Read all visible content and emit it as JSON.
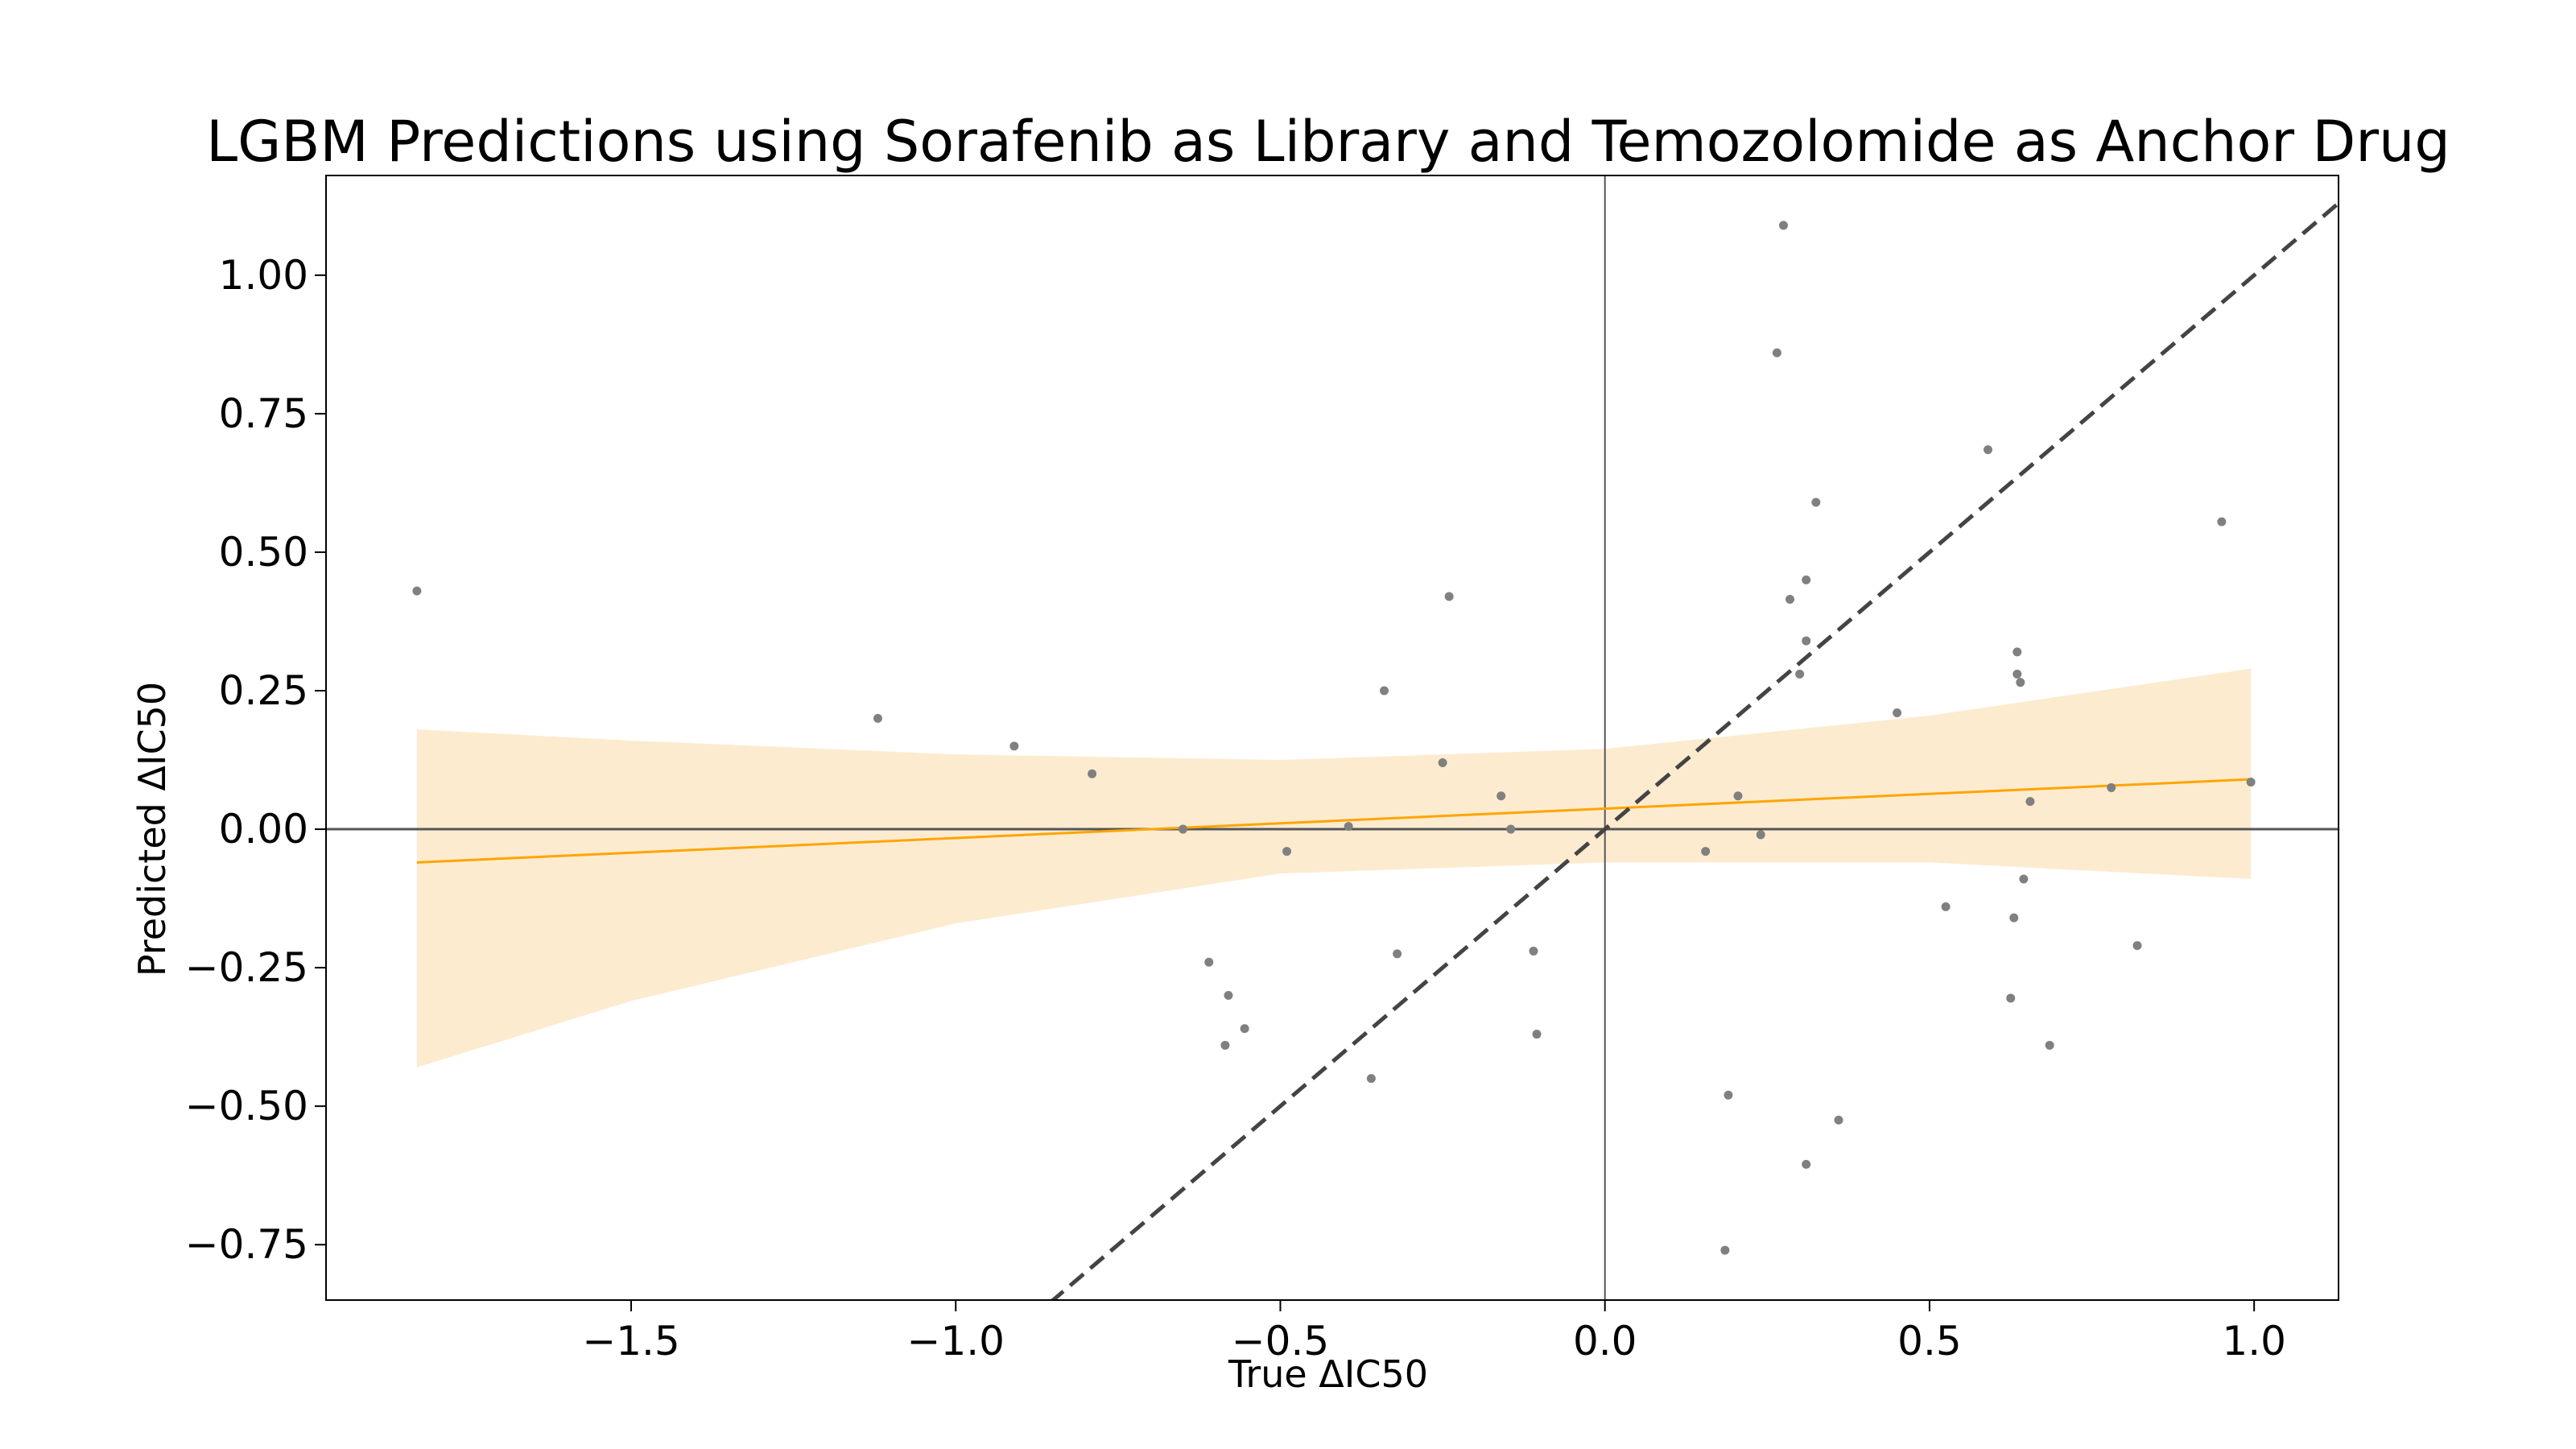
{
  "chart_data": {
    "type": "scatter",
    "title": "LGBM Predictions using Sorafenib as Library and Temozolomide as Anchor Drug",
    "xlabel": "True ΔIC50",
    "ylabel": "Predicted ΔIC50",
    "xlim": [
      -1.97,
      1.13
    ],
    "ylim": [
      -0.85,
      1.18
    ],
    "x_ticks": [
      -1.5,
      -1.0,
      -0.5,
      0.0,
      0.5,
      1.0
    ],
    "x_tick_labels": [
      "−1.5",
      "−1.0",
      "−0.5",
      "0.0",
      "0.5",
      "1.0"
    ],
    "y_ticks": [
      -0.75,
      -0.5,
      -0.25,
      0.0,
      0.25,
      0.5,
      0.75,
      1.0
    ],
    "y_tick_labels": [
      "−0.75",
      "−0.50",
      "−0.25",
      "0.00",
      "0.25",
      "0.50",
      "0.75",
      "1.00"
    ],
    "grid": false,
    "colors": {
      "points": "#808080",
      "regression": "#ffa500",
      "band": "#fdebd0",
      "identity": "#444444",
      "reference_lines": "#555555"
    },
    "points": [
      [
        -1.83,
        0.43
      ],
      [
        -1.12,
        0.2
      ],
      [
        -0.91,
        0.15
      ],
      [
        -0.79,
        0.1
      ],
      [
        -0.65,
        0.0
      ],
      [
        -0.61,
        -0.24
      ],
      [
        -0.58,
        -0.3
      ],
      [
        -0.585,
        -0.39
      ],
      [
        -0.555,
        -0.36
      ],
      [
        -0.49,
        -0.04
      ],
      [
        -0.395,
        0.005
      ],
      [
        -0.36,
        -0.45
      ],
      [
        -0.34,
        0.25
      ],
      [
        -0.32,
        -0.225
      ],
      [
        -0.25,
        0.12
      ],
      [
        -0.24,
        0.42
      ],
      [
        -0.16,
        0.06
      ],
      [
        -0.145,
        0.0
      ],
      [
        -0.11,
        -0.22
      ],
      [
        -0.105,
        -0.37
      ],
      [
        0.155,
        -0.04
      ],
      [
        0.185,
        -0.76
      ],
      [
        0.19,
        -0.48
      ],
      [
        0.205,
        0.06
      ],
      [
        0.24,
        -0.01
      ],
      [
        0.265,
        0.86
      ],
      [
        0.275,
        1.09
      ],
      [
        0.285,
        0.415
      ],
      [
        0.3,
        0.28
      ],
      [
        0.31,
        0.45
      ],
      [
        0.31,
        0.34
      ],
      [
        0.31,
        -0.605
      ],
      [
        0.325,
        0.59
      ],
      [
        0.36,
        -0.525
      ],
      [
        0.45,
        0.21
      ],
      [
        0.525,
        -0.14
      ],
      [
        0.59,
        0.685
      ],
      [
        0.625,
        -0.305
      ],
      [
        0.63,
        -0.16
      ],
      [
        0.635,
        0.32
      ],
      [
        0.635,
        0.28
      ],
      [
        0.64,
        0.265
      ],
      [
        0.645,
        -0.09
      ],
      [
        0.655,
        0.05
      ],
      [
        0.685,
        -0.39
      ],
      [
        0.78,
        0.075
      ],
      [
        0.82,
        -0.21
      ],
      [
        0.95,
        0.555
      ],
      [
        0.995,
        0.085
      ]
    ],
    "regression_line": {
      "x": [
        -1.83,
        0.995
      ],
      "y": [
        -0.06,
        0.09
      ]
    },
    "confidence_band": {
      "x": [
        -1.83,
        -1.5,
        -1.0,
        -0.5,
        0.0,
        0.5,
        0.995
      ],
      "lower": [
        -0.43,
        -0.31,
        -0.17,
        -0.08,
        -0.06,
        -0.06,
        -0.09
      ],
      "upper": [
        0.18,
        0.16,
        0.135,
        0.125,
        0.145,
        0.205,
        0.29
      ]
    },
    "identity_line": {
      "x": [
        -0.855,
        1.13
      ],
      "y": [
        -0.855,
        1.13
      ]
    },
    "reference_lines": {
      "x": 0.0,
      "y": 0.0
    }
  }
}
